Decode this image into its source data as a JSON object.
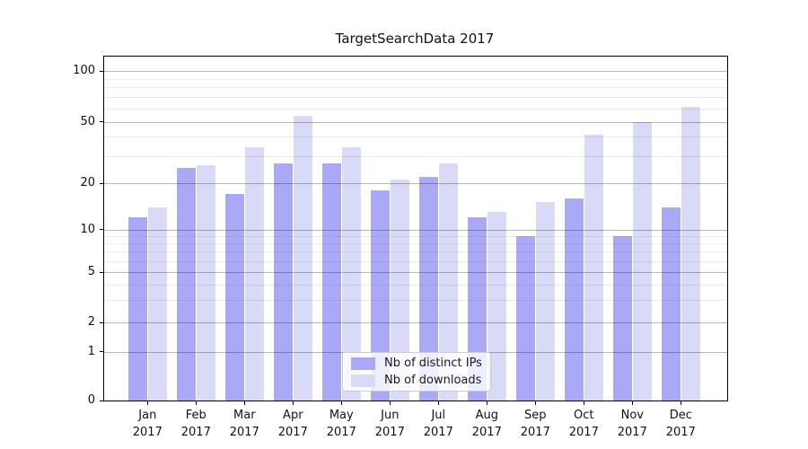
{
  "title": "TargetSearchData 2017",
  "legend": {
    "items": [
      {
        "label": "Nb of distinct IPs",
        "color": "#a9a9f8"
      },
      {
        "label": "Nb of downloads",
        "color": "#d9d9f8"
      }
    ]
  },
  "colors": {
    "distinct_ips": "#a9a9f8",
    "downloads": "#d9d9f8",
    "spine": "#000000"
  },
  "chart_data": {
    "type": "bar",
    "title": "TargetSearchData 2017",
    "categories": [
      "Jan",
      "Feb",
      "Mar",
      "Apr",
      "May",
      "Jun",
      "Jul",
      "Aug",
      "Sep",
      "Oct",
      "Nov",
      "Dec"
    ],
    "category_year": "2017",
    "series": [
      {
        "name": "Nb of distinct IPs",
        "color": "#a9a9f8",
        "values": [
          12,
          25,
          17,
          27,
          27,
          18,
          22,
          12,
          9,
          16,
          9,
          14
        ]
      },
      {
        "name": "Nb of downloads",
        "color": "#d9d9f8",
        "values": [
          14,
          26,
          34,
          54,
          34,
          21,
          27,
          13,
          15,
          41,
          50,
          61
        ]
      }
    ],
    "xlabel": "",
    "ylabel": "",
    "yscale": "symlog",
    "yticks": [
      0,
      1,
      2,
      5,
      10,
      20,
      50,
      100
    ],
    "minor_yticks": [
      3,
      4,
      6,
      7,
      8,
      9,
      30,
      40,
      60,
      70,
      80,
      90
    ],
    "ylim": [
      0,
      135
    ],
    "grid": true,
    "legend_position": "lower center"
  }
}
